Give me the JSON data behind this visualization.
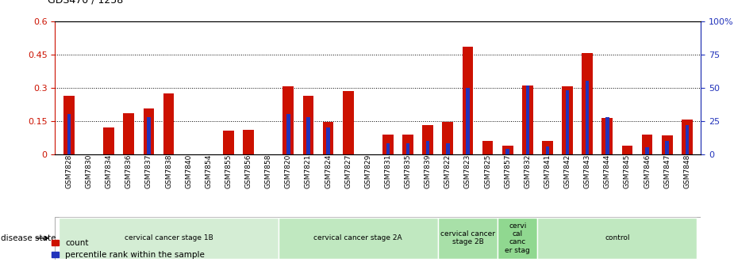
{
  "title": "GDS470 / 1258",
  "samples": [
    "GSM7828",
    "GSM7830",
    "GSM7834",
    "GSM7836",
    "GSM7837",
    "GSM7838",
    "GSM7840",
    "GSM7854",
    "GSM7855",
    "GSM7856",
    "GSM7858",
    "GSM7820",
    "GSM7821",
    "GSM7824",
    "GSM7827",
    "GSM7829",
    "GSM7831",
    "GSM7835",
    "GSM7839",
    "GSM7822",
    "GSM7823",
    "GSM7825",
    "GSM7857",
    "GSM7832",
    "GSM7841",
    "GSM7842",
    "GSM7843",
    "GSM7844",
    "GSM7845",
    "GSM7846",
    "GSM7847",
    "GSM7848"
  ],
  "count_values": [
    0.265,
    0.0,
    0.12,
    0.185,
    0.205,
    0.275,
    0.0,
    0.0,
    0.108,
    0.112,
    0.0,
    0.305,
    0.265,
    0.145,
    0.285,
    0.0,
    0.09,
    0.09,
    0.13,
    0.145,
    0.485,
    0.06,
    0.04,
    0.31,
    0.06,
    0.305,
    0.455,
    0.165,
    0.04,
    0.09,
    0.085,
    0.155
  ],
  "percentile_values": [
    30,
    0,
    0,
    0,
    28,
    0,
    0,
    0,
    0,
    0,
    0,
    30,
    28,
    20,
    0,
    0,
    8,
    8,
    10,
    8,
    50,
    0,
    4,
    52,
    6,
    48,
    55,
    28,
    0,
    5,
    10,
    22
  ],
  "groups": [
    {
      "label": "cervical cancer stage 1B",
      "start": 0,
      "end": 11,
      "color": "#d4edd4"
    },
    {
      "label": "cervical cancer stage 2A",
      "start": 11,
      "end": 19,
      "color": "#c0e8c0"
    },
    {
      "label": "cervical cancer\nstage 2B",
      "start": 19,
      "end": 22,
      "color": "#a8e0a8"
    },
    {
      "label": "cervi\ncal\ncanc\ner stag",
      "start": 22,
      "end": 24,
      "color": "#90d890"
    },
    {
      "label": "control",
      "start": 24,
      "end": 32,
      "color": "#c0e8c0"
    }
  ],
  "ylim_left": [
    0,
    0.6
  ],
  "ylim_right": [
    0,
    100
  ],
  "yticks_left": [
    0,
    0.15,
    0.3,
    0.45,
    0.6
  ],
  "yticks_right": [
    0,
    25,
    50,
    75,
    100
  ],
  "ytick_labels_left": [
    "0",
    "0.15",
    "0.3",
    "0.45",
    "0.6"
  ],
  "ytick_labels_right": [
    "0",
    "25",
    "50",
    "75",
    "100%"
  ],
  "hlines": [
    0.15,
    0.3,
    0.45
  ],
  "bar_color_count": "#cc1100",
  "bar_color_percentile": "#2233bb",
  "bar_width": 0.55,
  "blue_bar_width": 0.18,
  "legend_count": "count",
  "legend_percentile": "percentile rank within the sample",
  "disease_state_label": "disease state"
}
